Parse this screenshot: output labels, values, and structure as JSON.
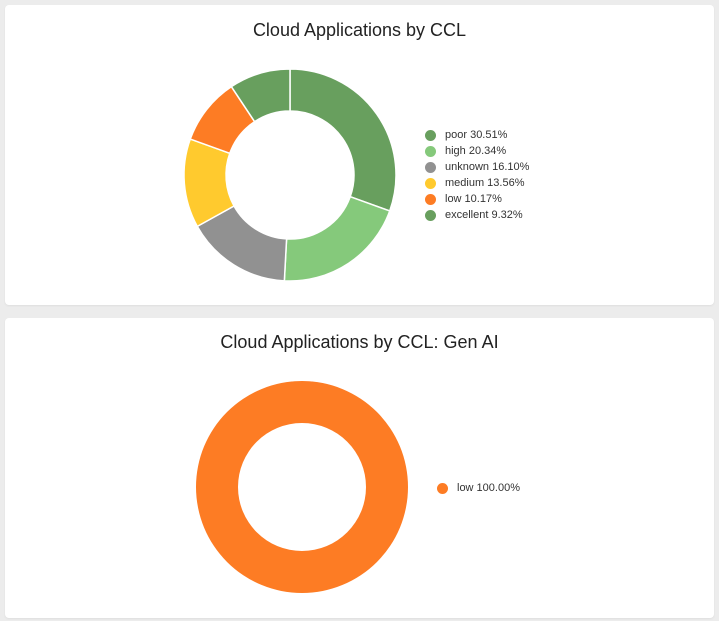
{
  "chart_data": [
    {
      "type": "pie",
      "variant": "donut",
      "title": "Cloud Applications by CCL",
      "categories": [
        "poor",
        "high",
        "unknown",
        "medium",
        "low",
        "excellent"
      ],
      "values": [
        30.51,
        20.34,
        16.1,
        13.56,
        10.17,
        9.32
      ],
      "unit": "%",
      "colors": [
        "#689f5e",
        "#85c97b",
        "#919191",
        "#ffca2e",
        "#fd7c24",
        "#689f5e"
      ],
      "legend": {
        "position": "right",
        "labels": [
          "poor 30.51%",
          "high 20.34%",
          "unknown 16.10%",
          "medium 13.56%",
          "low 10.17%",
          "excellent 9.32%"
        ]
      }
    },
    {
      "type": "pie",
      "variant": "donut",
      "title": "Cloud Applications by CCL: Gen AI",
      "categories": [
        "low"
      ],
      "values": [
        100.0
      ],
      "unit": "%",
      "colors": [
        "#fd7c24"
      ],
      "legend": {
        "position": "right",
        "labels": [
          "low 100.00%"
        ]
      }
    }
  ]
}
